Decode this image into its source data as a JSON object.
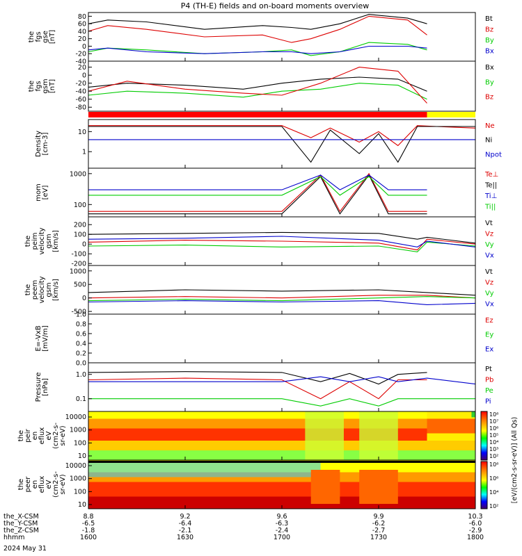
{
  "title": "P4 (TH-E) fields and on-board moments overview",
  "colors": {
    "black": "#000000",
    "red": "#dd0000",
    "green": "#00cc00",
    "blue": "#0000cc",
    "yellow": "#ffff00",
    "barred": "#ff0000"
  },
  "chart_data": [
    {
      "id": "fgs-gse",
      "type": "line",
      "ylabel": [
        "the",
        "fgs",
        "gse",
        "[nT]"
      ],
      "ylim": [
        -40,
        90
      ],
      "yticks": [
        "80",
        "60",
        "40",
        "20",
        "0",
        "-20",
        "-40"
      ],
      "series": [
        {
          "name": "Bt",
          "color": "#000000",
          "x": [
            16.0,
            16.1,
            16.3,
            16.6,
            16.9,
            17.05,
            17.15,
            17.3,
            17.45,
            17.65,
            17.75
          ],
          "y": [
            60,
            70,
            65,
            45,
            55,
            50,
            45,
            60,
            85,
            75,
            60
          ]
        },
        {
          "name": "Bz",
          "color": "#dd0000",
          "x": [
            16.0,
            16.1,
            16.3,
            16.6,
            16.9,
            17.05,
            17.15,
            17.3,
            17.45,
            17.65,
            17.75
          ],
          "y": [
            40,
            55,
            45,
            25,
            30,
            10,
            20,
            45,
            80,
            70,
            30
          ]
        },
        {
          "name": "By",
          "color": "#00cc00",
          "x": [
            16.0,
            16.1,
            16.3,
            16.6,
            16.9,
            17.05,
            17.15,
            17.3,
            17.45,
            17.65,
            17.75
          ],
          "y": [
            -15,
            -5,
            -10,
            -20,
            -15,
            -10,
            -25,
            -15,
            10,
            5,
            -10
          ]
        },
        {
          "name": "Bx",
          "color": "#0000cc",
          "x": [
            16.0,
            16.1,
            16.3,
            16.6,
            16.9,
            17.05,
            17.15,
            17.3,
            17.45,
            17.65,
            17.75
          ],
          "y": [
            -10,
            -5,
            -15,
            -20,
            -15,
            -15,
            -20,
            -15,
            0,
            0,
            -5
          ]
        }
      ]
    },
    {
      "id": "fgs-gsm",
      "type": "line",
      "ylabel": [
        "the",
        "fgs",
        "gsm",
        "[nT]"
      ],
      "ylim": [
        -90,
        35
      ],
      "yticks": [
        "20",
        "0",
        "-20",
        "-40",
        "-60",
        "-80"
      ],
      "series": [
        {
          "name": "Bx",
          "color": "#000000",
          "x": [
            16.0,
            16.2,
            16.5,
            16.8,
            17.0,
            17.2,
            17.4,
            17.6,
            17.75
          ],
          "y": [
            -30,
            -20,
            -25,
            -35,
            -20,
            -10,
            -5,
            -10,
            -40
          ]
        },
        {
          "name": "By",
          "color": "#00cc00",
          "x": [
            16.0,
            16.2,
            16.5,
            16.8,
            17.0,
            17.2,
            17.4,
            17.6,
            17.75
          ],
          "y": [
            -50,
            -40,
            -45,
            -55,
            -40,
            -35,
            -20,
            -25,
            -60
          ]
        },
        {
          "name": "Bz",
          "color": "#dd0000",
          "x": [
            16.0,
            16.2,
            16.5,
            16.8,
            17.0,
            17.2,
            17.4,
            17.6,
            17.75
          ],
          "y": [
            -40,
            -15,
            -35,
            -45,
            -50,
            -20,
            20,
            10,
            -70
          ]
        }
      ]
    },
    {
      "id": "density",
      "type": "line",
      "scale": "log",
      "ylabel": [
        "Density",
        "[cm-3]"
      ],
      "ylim": [
        0.15,
        40
      ],
      "yticks": [
        "10",
        "1"
      ],
      "series": [
        {
          "name": "Ne",
          "color": "#dd0000",
          "x": [
            16.0,
            16.5,
            17.0,
            17.15,
            17.25,
            17.4,
            17.5,
            17.6,
            17.7,
            17.8,
            18.0
          ],
          "y": [
            20,
            20,
            20,
            5,
            15,
            3,
            10,
            2,
            20,
            18,
            15
          ]
        },
        {
          "name": "Ni",
          "color": "#000000",
          "x": [
            16.0,
            16.5,
            17.0,
            17.15,
            17.25,
            17.4,
            17.5,
            17.6,
            17.7,
            17.8,
            18.0
          ],
          "y": [
            18,
            18,
            18,
            0.3,
            12,
            0.8,
            8,
            0.3,
            18,
            18,
            18
          ]
        },
        {
          "name": "Npot",
          "color": "#0000cc",
          "x": [
            16.0,
            16.5,
            17.0,
            17.15,
            17.25,
            17.4,
            17.5,
            17.6,
            17.7,
            17.8,
            18.0
          ],
          "y": [
            4,
            4,
            4,
            4,
            4,
            4,
            4,
            4,
            4,
            4,
            4
          ]
        }
      ]
    },
    {
      "id": "temperature",
      "type": "line",
      "scale": "log",
      "ylabel": [
        "mom",
        "[eV]"
      ],
      "ylim": [
        40,
        1500
      ],
      "yticks": [
        "1000",
        "100"
      ],
      "series": [
        {
          "name": "Te⊥",
          "color": "#dd0000",
          "x": [
            16.0,
            16.5,
            17.0,
            17.2,
            17.3,
            17.45,
            17.55,
            17.65,
            17.75
          ],
          "y": [
            60,
            60,
            60,
            900,
            60,
            1000,
            60,
            60,
            60
          ]
        },
        {
          "name": "Te||",
          "color": "#000000",
          "x": [
            16.0,
            16.5,
            17.0,
            17.2,
            17.3,
            17.45,
            17.55,
            17.65,
            17.75
          ],
          "y": [
            50,
            50,
            50,
            800,
            50,
            900,
            50,
            50,
            50
          ]
        },
        {
          "name": "Ti⊥",
          "color": "#0000cc",
          "x": [
            16.0,
            16.5,
            17.0,
            17.2,
            17.3,
            17.45,
            17.55,
            17.65,
            17.75
          ],
          "y": [
            300,
            300,
            300,
            900,
            300,
            900,
            300,
            300,
            300
          ]
        },
        {
          "name": "Ti||",
          "color": "#00cc00",
          "x": [
            16.0,
            16.5,
            17.0,
            17.2,
            17.3,
            17.45,
            17.55,
            17.65,
            17.75
          ],
          "y": [
            200,
            200,
            200,
            800,
            200,
            800,
            200,
            200,
            200
          ]
        }
      ]
    },
    {
      "id": "peim-velocity",
      "type": "line",
      "ylabel": [
        "the",
        "peim",
        "velocity",
        "gsm",
        "[km/s]"
      ],
      "ylim": [
        -220,
        280
      ],
      "yticks": [
        "200",
        "100",
        "0",
        "-100",
        "-200"
      ],
      "series": [
        {
          "name": "Vt",
          "color": "#000000",
          "x": [
            16.0,
            16.5,
            17.0,
            17.5,
            17.7,
            17.75,
            18.0
          ],
          "y": [
            100,
            110,
            120,
            110,
            50,
            70,
            10
          ]
        },
        {
          "name": "Vz",
          "color": "#dd0000",
          "x": [
            16.0,
            16.5,
            17.0,
            17.5,
            17.7,
            17.75,
            18.0
          ],
          "y": [
            20,
            40,
            30,
            10,
            -60,
            50,
            0
          ]
        },
        {
          "name": "Vy",
          "color": "#00cc00",
          "x": [
            16.0,
            16.5,
            17.0,
            17.5,
            17.7,
            17.75,
            18.0
          ],
          "y": [
            -20,
            -10,
            -30,
            -20,
            -80,
            20,
            -20
          ]
        },
        {
          "name": "Vx",
          "color": "#0000cc",
          "x": [
            16.0,
            16.5,
            17.0,
            17.5,
            17.7,
            17.75,
            18.0
          ],
          "y": [
            50,
            60,
            80,
            40,
            -30,
            30,
            -30
          ]
        }
      ]
    },
    {
      "id": "peem-velocity",
      "type": "line",
      "ylabel": [
        "the",
        "peem",
        "velocity",
        "gsm",
        "[km/s]"
      ],
      "ylim": [
        -600,
        1200
      ],
      "yticks": [
        "1000",
        "500",
        "0",
        "-500"
      ],
      "series": [
        {
          "name": "Vt",
          "color": "#000000",
          "x": [
            16.0,
            16.5,
            17.0,
            17.5,
            17.75,
            18.0
          ],
          "y": [
            200,
            300,
            250,
            300,
            200,
            100
          ]
        },
        {
          "name": "Vz",
          "color": "#dd0000",
          "x": [
            16.0,
            16.5,
            17.0,
            17.5,
            17.75,
            18.0
          ],
          "y": [
            0,
            50,
            0,
            100,
            100,
            0
          ]
        },
        {
          "name": "Vy",
          "color": "#00cc00",
          "x": [
            16.0,
            16.5,
            17.0,
            17.5,
            17.75,
            18.0
          ],
          "y": [
            -100,
            -50,
            -100,
            0,
            50,
            0
          ]
        },
        {
          "name": "Vx",
          "color": "#0000cc",
          "x": [
            16.0,
            16.5,
            17.0,
            17.5,
            17.75,
            18.0
          ],
          "y": [
            -150,
            -100,
            -150,
            -100,
            -250,
            -200
          ]
        }
      ]
    },
    {
      "id": "efield",
      "type": "line",
      "ylabel": [
        "E=-VxB",
        "[mV/m]"
      ],
      "ylim": [
        0.0,
        1.0
      ],
      "yticks": [
        "1.0",
        "0.8",
        "0.6",
        "0.4",
        "0.2",
        "0.0"
      ],
      "series": [
        {
          "name": "Ez",
          "color": "#dd0000",
          "x": [],
          "y": []
        },
        {
          "name": "Ey",
          "color": "#00cc00",
          "x": [],
          "y": []
        },
        {
          "name": "Ex",
          "color": "#0000cc",
          "x": [],
          "y": []
        }
      ]
    },
    {
      "id": "pressure",
      "type": "line",
      "scale": "log",
      "ylabel": [
        "Pressure",
        "[nPa]"
      ],
      "ylim": [
        0.03,
        3
      ],
      "yticks": [
        "1.0",
        "0.1"
      ],
      "series": [
        {
          "name": "Pt",
          "color": "#000000",
          "x": [
            16.0,
            16.5,
            17.0,
            17.2,
            17.35,
            17.5,
            17.6,
            17.75
          ],
          "y": [
            1.2,
            1.3,
            1.2,
            0.5,
            1.1,
            0.4,
            1.0,
            1.2
          ]
        },
        {
          "name": "Pb",
          "color": "#dd0000",
          "x": [
            16.0,
            16.5,
            17.0,
            17.2,
            17.35,
            17.5,
            17.6,
            17.75
          ],
          "y": [
            0.6,
            0.7,
            0.6,
            0.1,
            0.5,
            0.1,
            0.6,
            0.6
          ]
        },
        {
          "name": "Pe",
          "color": "#00cc00",
          "x": [
            16.0,
            16.5,
            17.0,
            17.2,
            17.35,
            17.5,
            17.6,
            17.75,
            18.0
          ],
          "y": [
            0.1,
            0.1,
            0.1,
            0.05,
            0.1,
            0.05,
            0.1,
            0.1,
            0.1
          ]
        },
        {
          "name": "Pi",
          "color": "#0000cc",
          "x": [
            16.0,
            16.5,
            17.0,
            17.2,
            17.35,
            17.5,
            17.6,
            17.75,
            18.0
          ],
          "y": [
            0.5,
            0.5,
            0.5,
            0.8,
            0.5,
            0.8,
            0.5,
            0.7,
            0.4
          ]
        }
      ]
    },
    {
      "id": "peir-spectrogram",
      "type": "heatmap",
      "ylabel": [
        "the",
        "peir",
        "en",
        "eflux",
        "eV",
        "(cm2-s-",
        "sr-eV)"
      ],
      "yticks": [
        "10000",
        "1000",
        "100",
        "10"
      ]
    },
    {
      "id": "peer-spectrogram",
      "type": "heatmap",
      "ylabel": [
        "the",
        "peer",
        "en",
        "eflux",
        "eV",
        "(cm2-s-",
        "sr-eV)"
      ],
      "yticks": [
        "10000",
        "1000",
        "100",
        "10"
      ]
    }
  ],
  "colorbar": {
    "label": "[eV/(cm2-s-sr-eV)] (All Qs)",
    "ticks": [
      "10⁸",
      "10⁷",
      "10⁶",
      "10⁵",
      "10⁴",
      "10³",
      "10²"
    ],
    "ticks_lower": [
      "10⁸",
      "10⁶",
      "10⁴",
      "10²"
    ]
  },
  "xaxis": {
    "rows": [
      {
        "label": "the_X-CSM",
        "values": [
          "8.8",
          "9.2",
          "9.6",
          "9.9",
          "10.3"
        ]
      },
      {
        "label": "the_Y-CSM",
        "values": [
          "-6.5",
          "-6.4",
          "-6.3",
          "-6.2",
          "-6.0"
        ]
      },
      {
        "label": "the_Z-CSM",
        "values": [
          "-1.8",
          "-2.1",
          "-2.4",
          "-2.7",
          "-2.9"
        ]
      },
      {
        "label": "hhmm",
        "values": [
          "1600",
          "1630",
          "1700",
          "1730",
          "1800"
        ]
      }
    ],
    "date": "2024 May 31",
    "range_hours": [
      16.0,
      18.0
    ]
  },
  "mode_bar": {
    "red_until_hour": 17.75
  }
}
